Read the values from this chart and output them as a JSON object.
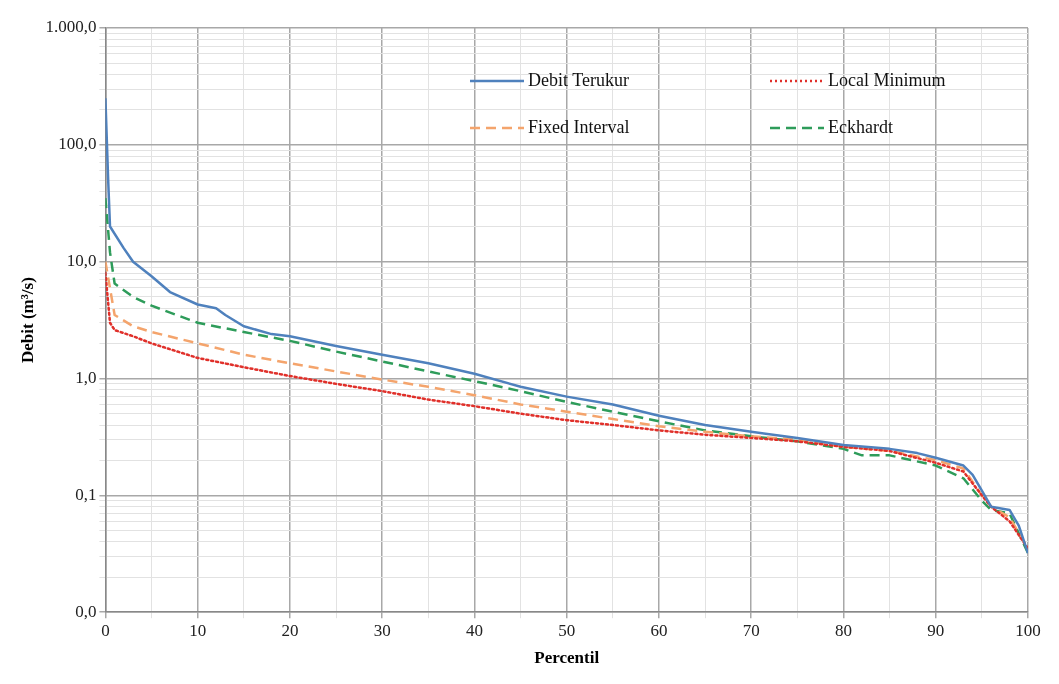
{
  "chart_data": {
    "type": "line",
    "xlabel": "Percentil",
    "ylabel": "Debit (m³/s)",
    "log": "y",
    "grid": true,
    "legend": "top right",
    "marker": "none",
    "xlim": [
      0,
      100
    ],
    "xticks": [
      0,
      {
        "value": 5,
        "label": null
      },
      10,
      {
        "value": 15,
        "label": null
      },
      20,
      {
        "value": 25,
        "label": null
      },
      30,
      {
        "value": 35,
        "label": null
      },
      40,
      {
        "value": 45,
        "label": null
      },
      50,
      {
        "value": 55,
        "label": null
      },
      60,
      {
        "value": 65,
        "label": null
      },
      70,
      {
        "value": 75,
        "label": null
      },
      80,
      {
        "value": 85,
        "label": null
      },
      90,
      {
        "value": 95,
        "label": null
      },
      100
    ],
    "ylim": [
      0.01,
      1000
    ],
    "yticks": [
      {
        "value": 0.01,
        "label": "0,0"
      },
      {
        "value": 0.02,
        "label": null
      },
      {
        "value": 0.03,
        "label": null
      },
      {
        "value": 0.04,
        "label": null
      },
      {
        "value": 0.05,
        "label": null
      },
      {
        "value": 0.06,
        "label": null
      },
      {
        "value": 0.07,
        "label": null
      },
      {
        "value": 0.08,
        "label": null
      },
      {
        "value": 0.09,
        "label": null
      },
      {
        "value": 0.1,
        "label": "0,1"
      },
      {
        "value": 0.2,
        "label": null
      },
      {
        "value": 0.3,
        "label": null
      },
      {
        "value": 0.4,
        "label": null
      },
      {
        "value": 0.5,
        "label": null
      },
      {
        "value": 0.6,
        "label": null
      },
      {
        "value": 0.7,
        "label": null
      },
      {
        "value": 0.8,
        "label": null
      },
      {
        "value": 0.9,
        "label": null
      },
      {
        "value": 1,
        "label": "1,0"
      },
      {
        "value": 2,
        "label": null
      },
      {
        "value": 3,
        "label": null
      },
      {
        "value": 4,
        "label": null
      },
      {
        "value": 5,
        "label": null
      },
      {
        "value": 6,
        "label": null
      },
      {
        "value": 7,
        "label": null
      },
      {
        "value": 8,
        "label": null
      },
      {
        "value": 9,
        "label": null
      },
      {
        "value": 10,
        "label": "10,0"
      },
      {
        "value": 20,
        "label": null
      },
      {
        "value": 30,
        "label": null
      },
      {
        "value": 40,
        "label": null
      },
      {
        "value": 50,
        "label": null
      },
      {
        "value": 60,
        "label": null
      },
      {
        "value": 70,
        "label": null
      },
      {
        "value": 80,
        "label": null
      },
      {
        "value": 90,
        "label": null
      },
      {
        "value": 100,
        "label": "100,0"
      },
      {
        "value": 200,
        "label": null
      },
      {
        "value": 300,
        "label": null
      },
      {
        "value": 400,
        "label": null
      },
      {
        "value": 500,
        "label": null
      },
      {
        "value": 600,
        "label": null
      },
      {
        "value": 700,
        "label": null
      },
      {
        "value": 800,
        "label": null
      },
      {
        "value": 900,
        "label": null
      },
      {
        "value": 1000,
        "label": "1.000,0"
      }
    ],
    "series": [
      {
        "name": "Debit Terukur",
        "color": "#4f81bd",
        "line_style": "solid",
        "x": [
          0,
          0.3,
          0.5,
          2,
          3,
          5,
          7,
          10,
          12,
          13,
          15,
          18,
          20,
          25,
          30,
          35,
          40,
          45,
          50,
          55,
          60,
          65,
          70,
          75,
          80,
          85,
          88,
          90,
          93,
          94,
          95,
          96,
          98,
          99,
          100
        ],
        "values": [
          250,
          50,
          20,
          13,
          10,
          7.5,
          5.5,
          4.3,
          4,
          3.5,
          2.8,
          2.4,
          2.3,
          1.9,
          1.6,
          1.35,
          1.1,
          0.85,
          0.7,
          0.6,
          0.48,
          0.4,
          0.35,
          0.31,
          0.27,
          0.25,
          0.23,
          0.21,
          0.18,
          0.15,
          0.11,
          0.08,
          0.075,
          0.055,
          0.032
        ]
      },
      {
        "name": "Local Minimum",
        "color": "#e0302a",
        "line_style": "dotted",
        "x": [
          0,
          0.5,
          1,
          3,
          5,
          10,
          15,
          20,
          25,
          30,
          35,
          40,
          45,
          50,
          55,
          60,
          65,
          70,
          75,
          80,
          85,
          90,
          93,
          95,
          96,
          98,
          100
        ],
        "values": [
          8,
          3,
          2.6,
          2.3,
          2,
          1.5,
          1.25,
          1.05,
          0.9,
          0.78,
          0.66,
          0.58,
          0.5,
          0.44,
          0.4,
          0.36,
          0.33,
          0.31,
          0.29,
          0.26,
          0.24,
          0.19,
          0.16,
          0.1,
          0.08,
          0.06,
          0.035
        ]
      },
      {
        "name": "Fixed Interval",
        "color": "#f4a46c",
        "line_style": "dashed",
        "x": [
          0,
          1,
          3,
          5,
          10,
          15,
          20,
          25,
          30,
          35,
          40,
          45,
          50,
          55,
          60,
          65,
          70,
          75,
          80,
          85,
          90,
          93,
          95,
          96,
          98,
          100
        ],
        "values": [
          10,
          3.5,
          2.8,
          2.5,
          2,
          1.6,
          1.35,
          1.15,
          0.98,
          0.85,
          0.72,
          0.6,
          0.52,
          0.45,
          0.39,
          0.35,
          0.32,
          0.3,
          0.26,
          0.24,
          0.2,
          0.17,
          0.1,
          0.08,
          0.065,
          0.035
        ]
      },
      {
        "name": "Eckhardt",
        "color": "#2e9c5a",
        "line_style": "dashed",
        "x": [
          0,
          0.5,
          1,
          3,
          5,
          10,
          15,
          20,
          25,
          30,
          35,
          40,
          45,
          50,
          55,
          60,
          65,
          70,
          75,
          80,
          82,
          85,
          90,
          93,
          95,
          96,
          98,
          100
        ],
        "values": [
          35,
          12,
          6.5,
          5,
          4.2,
          3,
          2.5,
          2.1,
          1.7,
          1.4,
          1.15,
          0.95,
          0.78,
          0.63,
          0.52,
          0.43,
          0.36,
          0.32,
          0.29,
          0.25,
          0.22,
          0.22,
          0.18,
          0.14,
          0.09,
          0.075,
          0.07,
          0.032
        ]
      }
    ]
  }
}
